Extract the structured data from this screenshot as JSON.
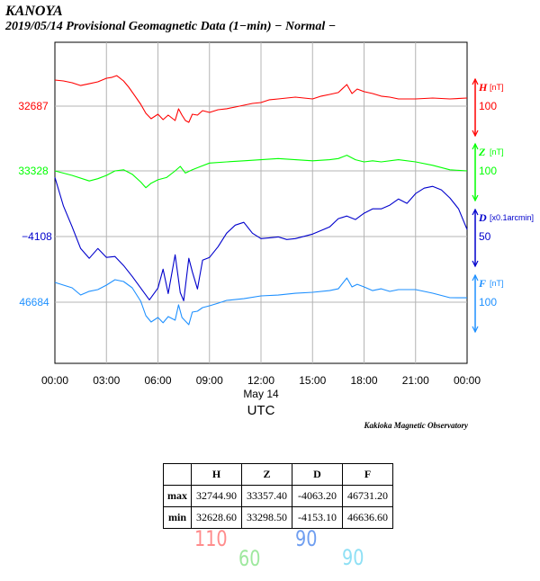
{
  "header": {
    "station": "KANOYA",
    "subtitle": "2019/05/14  Provisional Geomagnetic Data (1−min)  − Normal −"
  },
  "chart_data": {
    "type": "line",
    "title": "2019/05/14 Provisional Geomagnetic Data (1-min) - Normal -",
    "xlabel": "UTC",
    "date_label": "May 14",
    "x_ticks": [
      "00:00",
      "03:00",
      "06:00",
      "09:00",
      "12:00",
      "15:00",
      "18:00",
      "21:00",
      "00:00"
    ],
    "x_range_hours": [
      0,
      24
    ],
    "grid": true,
    "credit": "Kakioka Magnetic Observatory",
    "series": [
      {
        "name": "H",
        "unit": "[nT]",
        "color": "#ff0000",
        "ref_label": "32687",
        "scale_label": "100",
        "hours": [
          0,
          0.5,
          1,
          1.5,
          2,
          2.5,
          3,
          3.3,
          3.6,
          4,
          4.3,
          4.6,
          5,
          5.3,
          5.6,
          6,
          6.3,
          6.6,
          7,
          7.2,
          7.4,
          7.6,
          7.8,
          8,
          8.3,
          8.6,
          9,
          9.5,
          10,
          10.5,
          11,
          11.5,
          12,
          12.5,
          13,
          13.5,
          14,
          14.5,
          15,
          15.5,
          16,
          16.5,
          17,
          17.3,
          17.6,
          18,
          18.5,
          19,
          19.5,
          20,
          21,
          22,
          23,
          24
        ],
        "values": [
          32716.6,
          32715.6,
          32713.5,
          32710.4,
          32712.4,
          32714.5,
          32718.6,
          32719.6,
          32721.6,
          32715.6,
          32708.4,
          32700.2,
          32689.0,
          32678.8,
          32672.7,
          32677.8,
          32671.7,
          32676.8,
          32670.7,
          32683.9,
          32676.8,
          32670.7,
          32668.6,
          32677.8,
          32676.8,
          32681.9,
          32679.9,
          32682.9,
          32684.0,
          32686.0,
          32688.0,
          32690.1,
          32691.1,
          32694.2,
          32695.2,
          32696.2,
          32697.2,
          32696.2,
          32695.2,
          32698.3,
          32700.3,
          32702.4,
          32711.5,
          32701.3,
          32706.4,
          32703.4,
          32701.3,
          32698.3,
          32697.2,
          32695.2,
          32695.2,
          32696.2,
          32695.2,
          32696.2
        ]
      },
      {
        "name": "Z",
        "unit": "[nT]",
        "color": "#00ff00",
        "ref_label": "33328",
        "scale_label": "100",
        "hours": [
          0,
          1,
          2,
          2.5,
          3,
          3.5,
          4,
          4.5,
          5,
          5.3,
          5.6,
          6,
          6.5,
          7,
          7.3,
          7.6,
          8,
          8.5,
          9,
          10,
          11,
          12,
          13,
          14,
          15,
          16,
          16.5,
          17,
          17.5,
          18,
          18.5,
          19,
          20,
          21,
          22,
          23,
          24
        ],
        "values": [
          33328.0,
          33323.9,
          33318.8,
          33320.9,
          33323.9,
          33328.0,
          33329.0,
          33325.0,
          33317.8,
          33312.7,
          33316.8,
          33319.9,
          33321.9,
          33328.0,
          33332.1,
          33326.0,
          33329.0,
          33332.1,
          33335.1,
          33336.2,
          33337.2,
          33338.2,
          33339.2,
          33338.2,
          33337.2,
          33338.2,
          33339.2,
          33342.3,
          33338.2,
          33336.2,
          33337.2,
          33336.2,
          33338.2,
          33336.2,
          33333.1,
          33329.0,
          33328.0
        ]
      },
      {
        "name": "D",
        "unit": "[x0.1arcmin]",
        "color": "#0000cc",
        "ref_label": "−4108",
        "scale_label": "50",
        "hours": [
          0,
          0.5,
          1,
          1.5,
          2,
          2.5,
          3,
          3.5,
          4,
          4.5,
          5,
          5.5,
          6,
          6.3,
          6.6,
          7,
          7.3,
          7.5,
          7.8,
          8,
          8.3,
          8.6,
          9,
          9.5,
          10,
          10.5,
          11,
          11.5,
          12,
          12.5,
          13,
          13.5,
          14,
          15,
          16,
          16.5,
          17,
          17.5,
          18,
          18.5,
          19,
          19.5,
          20,
          20.5,
          21,
          21.5,
          22,
          22.5,
          23,
          23.5,
          24
        ],
        "values": [
          -4074.2,
          -4090.6,
          -4102.4,
          -4114.8,
          -4120.4,
          -4114.8,
          -4119.9,
          -4119.4,
          -4124.5,
          -4130.7,
          -4137.4,
          -4144.1,
          -4137.4,
          -4126.6,
          -4140.5,
          -4118.4,
          -4140.0,
          -4144.6,
          -4120.4,
          -4128.1,
          -4137.9,
          -4121.5,
          -4119.9,
          -4113.8,
          -4106.1,
          -4101.5,
          -4099.9,
          -4106.1,
          -4109.2,
          -4108.7,
          -4108.2,
          -4109.7,
          -4109.2,
          -4106.6,
          -4102.5,
          -4097.8,
          -4096.3,
          -4098.3,
          -4094.7,
          -4092.2,
          -4092.2,
          -4090.1,
          -4086.6,
          -4089.1,
          -4083.5,
          -4080.4,
          -4079.4,
          -4081.4,
          -4086.0,
          -4092.2,
          -4104.0
        ]
      },
      {
        "name": "F",
        "unit": "[nT]",
        "color": "#1e90ff",
        "ref_label": "46684",
        "scale_label": "100",
        "hours": [
          0,
          0.5,
          1,
          1.5,
          2,
          2.5,
          3,
          3.5,
          4,
          4.5,
          5,
          5.3,
          5.6,
          6,
          6.3,
          6.6,
          7,
          7.2,
          7.4,
          7.6,
          7.8,
          8,
          8.3,
          8.6,
          9,
          9.5,
          10,
          11,
          12,
          13,
          14,
          15,
          16,
          16.5,
          17,
          17.3,
          17.6,
          18,
          18.5,
          19,
          19.5,
          20,
          21,
          22,
          23,
          24
        ],
        "values": [
          46706.4,
          46703.4,
          46700.3,
          46692.2,
          46696.3,
          46698.3,
          46703.4,
          46709.5,
          46707.5,
          46700.3,
          46685.0,
          46668.7,
          46661.6,
          46666.7,
          46660.6,
          46667.7,
          46663.6,
          46681.0,
          46666.7,
          46662.6,
          46658.5,
          46672.8,
          46673.8,
          46677.9,
          46679.9,
          46682.9,
          46686.0,
          46688.0,
          46691.1,
          46692.1,
          46694.1,
          46695.2,
          46697.2,
          46699.2,
          46711.5,
          46701.3,
          46704.3,
          46701.3,
          46697.2,
          46699.2,
          46696.2,
          46698.3,
          46698.3,
          46694.2,
          46689.1,
          46689.0
        ]
      }
    ]
  },
  "stats_table": {
    "col_headers": [
      "H",
      "Z",
      "D",
      "F"
    ],
    "rows": [
      {
        "label": "max",
        "values": [
          "32744.90",
          "33357.40",
          "-4063.20",
          "46731.20"
        ]
      },
      {
        "label": "min",
        "values": [
          "32628.60",
          "33298.50",
          "-4153.10",
          "46636.60"
        ]
      }
    ]
  },
  "range_notes": [
    {
      "text": "110",
      "color": "#ff8c8c"
    },
    {
      "text": "60",
      "color": "#9ee89e"
    },
    {
      "text": "90",
      "color": "#6f9ef0"
    },
    {
      "text": "90",
      "color": "#8fe0f5"
    }
  ]
}
